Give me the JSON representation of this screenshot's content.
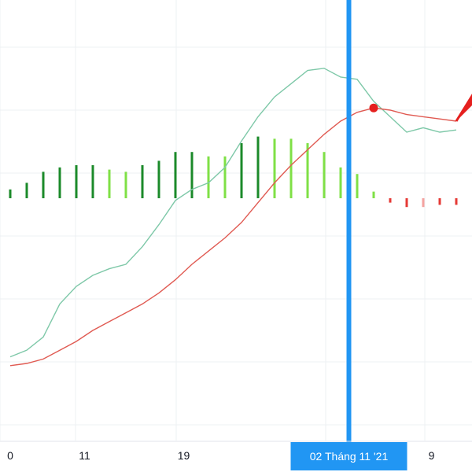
{
  "chart_data": {
    "type": "line",
    "x_ticks": [
      {
        "label": "0",
        "index": 0
      },
      {
        "label": "11",
        "index": 4.5
      },
      {
        "label": "19",
        "index": 10.5
      },
      {
        "label": "9",
        "index": 25.5
      }
    ],
    "crosshair": {
      "label": "02 Tháng 11 '21",
      "index": 20.5
    },
    "y_range": [
      -1.1,
      0.9
    ],
    "series": [
      {
        "role": "fast-line",
        "color": "#7ec8a8",
        "values": [
          -0.72,
          -0.69,
          -0.63,
          -0.48,
          -0.4,
          -0.35,
          -0.32,
          -0.3,
          -0.22,
          -0.12,
          -0.01,
          0.04,
          0.07,
          0.14,
          0.26,
          0.37,
          0.46,
          0.52,
          0.58,
          0.59,
          0.55,
          0.54,
          0.44,
          0.37,
          0.3,
          0.32,
          0.3,
          0.31
        ]
      },
      {
        "role": "slow-line",
        "color": "#e05a52",
        "values": [
          -0.76,
          -0.75,
          -0.73,
          -0.69,
          -0.65,
          -0.6,
          -0.56,
          -0.52,
          -0.48,
          -0.43,
          -0.37,
          -0.3,
          -0.24,
          -0.18,
          -0.11,
          -0.02,
          0.07,
          0.15,
          0.22,
          0.29,
          0.35,
          0.39,
          0.41,
          0.4,
          0.38,
          0.37,
          0.36,
          0.35
        ]
      }
    ],
    "histogram": {
      "values": [
        0.04,
        0.07,
        0.12,
        0.14,
        0.15,
        0.15,
        0.13,
        0.12,
        0.15,
        0.17,
        0.21,
        0.21,
        0.19,
        0.19,
        0.25,
        0.28,
        0.27,
        0.27,
        0.25,
        0.21,
        0.14,
        0.11,
        0.03,
        -0.02,
        -0.04,
        -0.04,
        -0.03,
        -0.03
      ],
      "colors": [
        "#1b8a2a",
        "#1b8a2a",
        "#1b8a2a",
        "#1b8a2a",
        "#1b8a2a",
        "#1b8a2a",
        "#7fe046",
        "#7fe046",
        "#1b8a2a",
        "#1b8a2a",
        "#1b8a2a",
        "#1b8a2a",
        "#7fe046",
        "#7fe046",
        "#1b8a2a",
        "#1b8a2a",
        "#7fe046",
        "#7fe046",
        "#7fe046",
        "#7fe046",
        "#7fe046",
        "#7fe046",
        "#7fe046",
        "#e53935",
        "#e53935",
        "#f4a3a0",
        "#e53935",
        "#e53935"
      ]
    },
    "marker": {
      "index": 22,
      "value": 0.41,
      "color": "#e5201f"
    },
    "gridlines": true,
    "crosshair_color": "#2196f3"
  }
}
